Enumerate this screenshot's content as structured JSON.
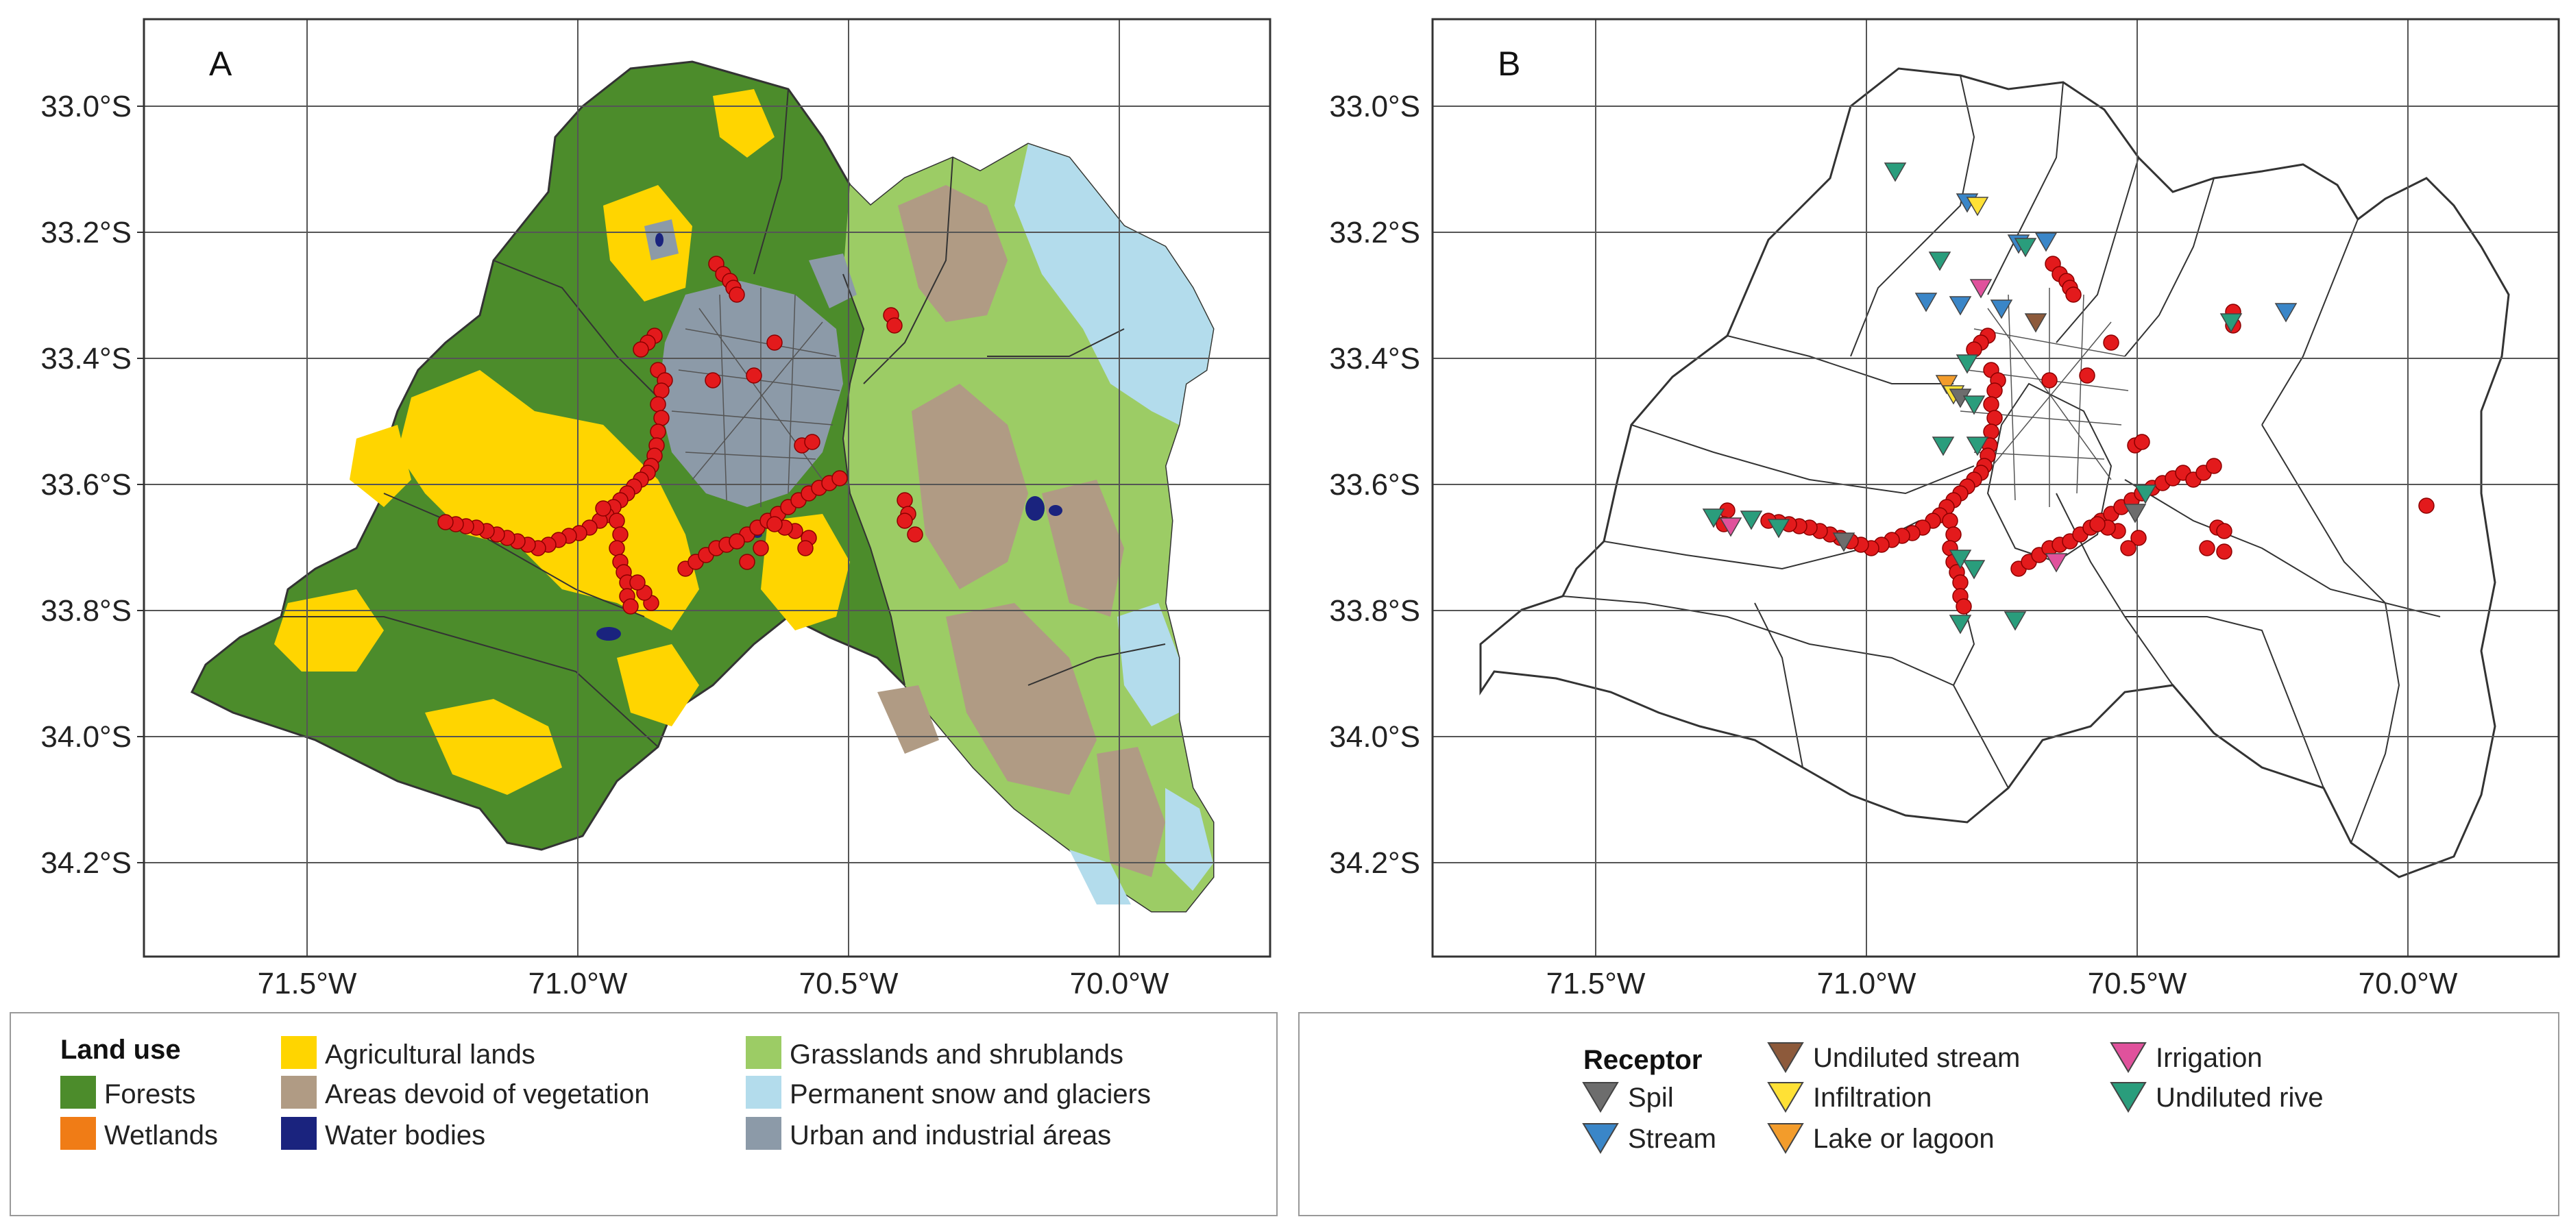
{
  "panels": [
    {
      "letter": "A"
    },
    {
      "letter": "B"
    }
  ],
  "axes": {
    "lat_labels": [
      "33.0°S",
      "33.2°S",
      "33.4°S",
      "33.6°S",
      "33.8°S",
      "34.0°S",
      "34.2°S"
    ],
    "lon_labels": [
      "71.5°W",
      "71.0°W",
      "70.5°W",
      "70.0°W"
    ]
  },
  "landuse_legend": {
    "title": "Land use",
    "items": [
      {
        "label": "Forests",
        "color": "#4c8c2b"
      },
      {
        "label": "Wetlands",
        "color": "#f07c16"
      },
      {
        "label": "Agricultural lands",
        "color": "#ffd500"
      },
      {
        "label": "Areas devoid of vegetation",
        "color": "#b09b84"
      },
      {
        "label": "Water bodies",
        "color": "#1a237e"
      },
      {
        "label": "Grasslands and shrublands",
        "color": "#9ccc65"
      },
      {
        "label": "Permanent snow and glaciers",
        "color": "#b3dcec"
      },
      {
        "label": "Urban and industrial áreas",
        "color": "#8c9aa8"
      }
    ]
  },
  "receptor_legend": {
    "title": "Receptor",
    "items": [
      {
        "label": "Spil",
        "color": "#6d6d6d"
      },
      {
        "label": "Stream",
        "color": "#3a86c8"
      },
      {
        "label": "Undiluted stream",
        "color": "#8d5a3b"
      },
      {
        "label": "Infiltration",
        "color": "#ffe135"
      },
      {
        "label": "Lake or lagoon",
        "color": "#f39c2b"
      },
      {
        "label": "Irrigation",
        "color": "#e0529c"
      },
      {
        "label": "Undiluted rive",
        "color": "#2a9d7c"
      }
    ]
  },
  "discharge_point_color": "#e31a1c"
}
